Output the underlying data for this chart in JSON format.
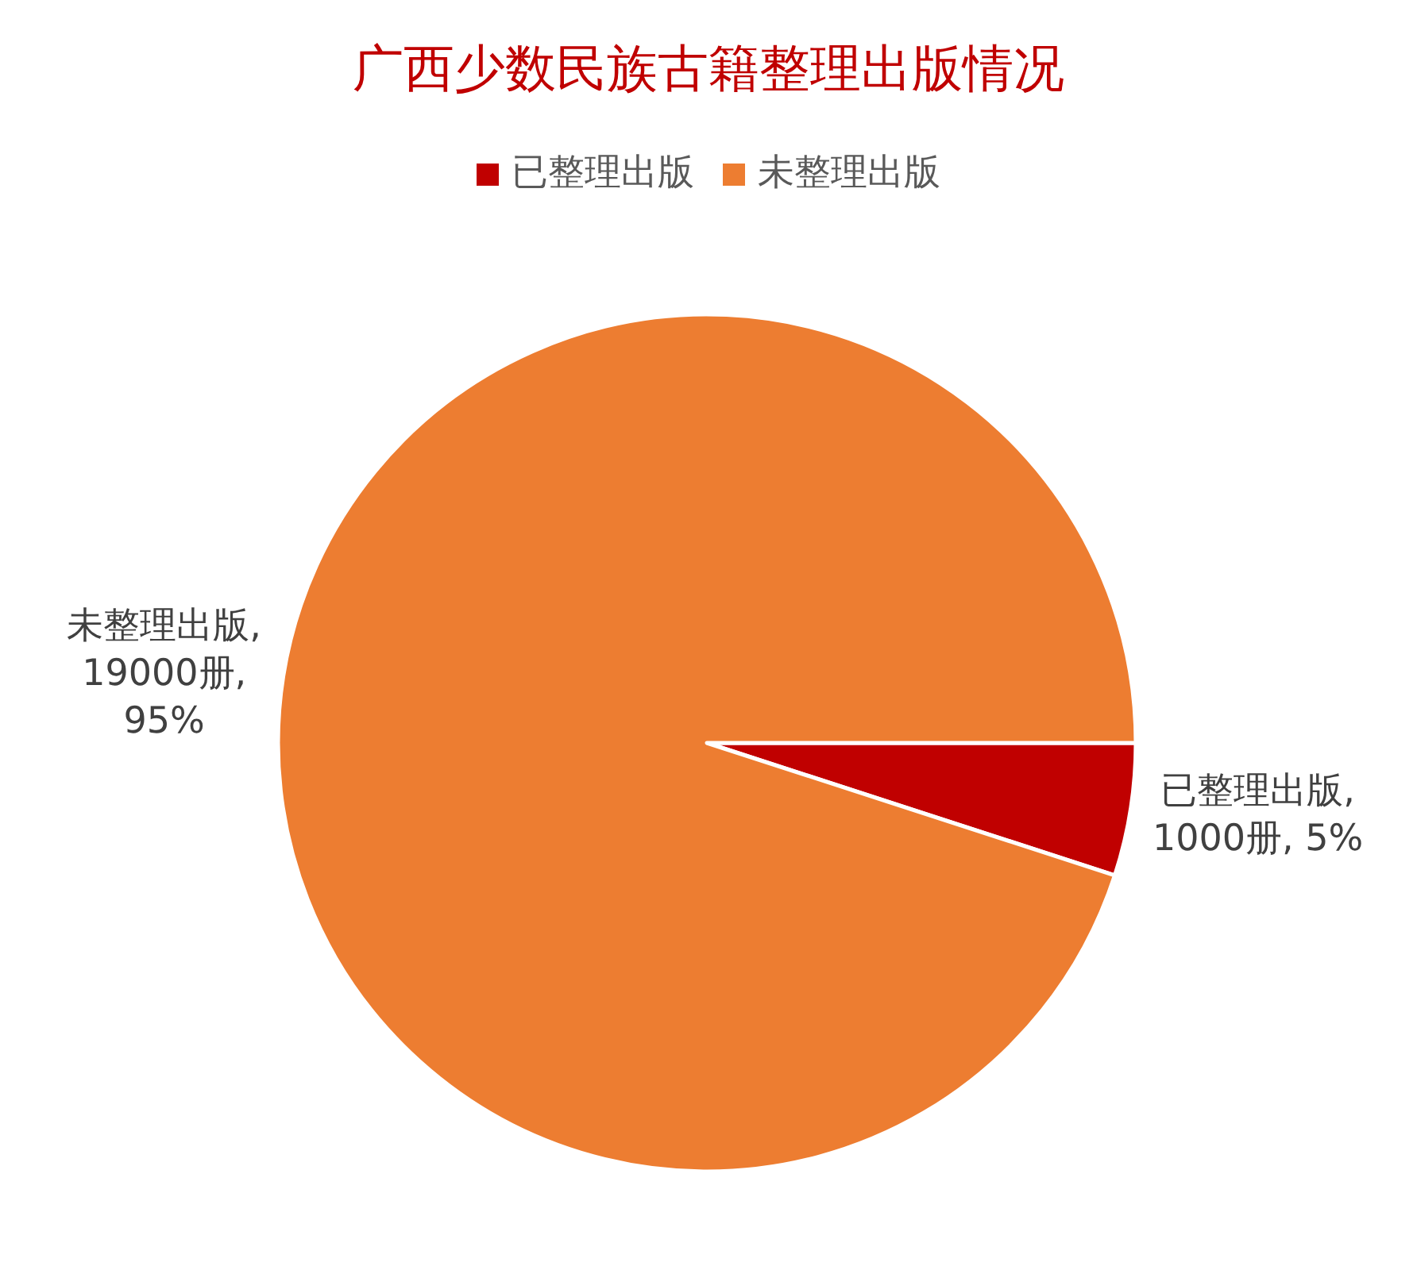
{
  "chart_data": {
    "type": "pie",
    "title": "广西少数民族古籍整理出版情况",
    "categories": [
      "已整理出版",
      "未整理出版"
    ],
    "values": [
      1000,
      19000
    ],
    "colors": [
      "#c00000",
      "#ed7d31"
    ],
    "value_labels": [
      "已整理出版, 1000册, 5%",
      "未整理出版, 19000册, 95%"
    ],
    "legend": "top"
  }
}
